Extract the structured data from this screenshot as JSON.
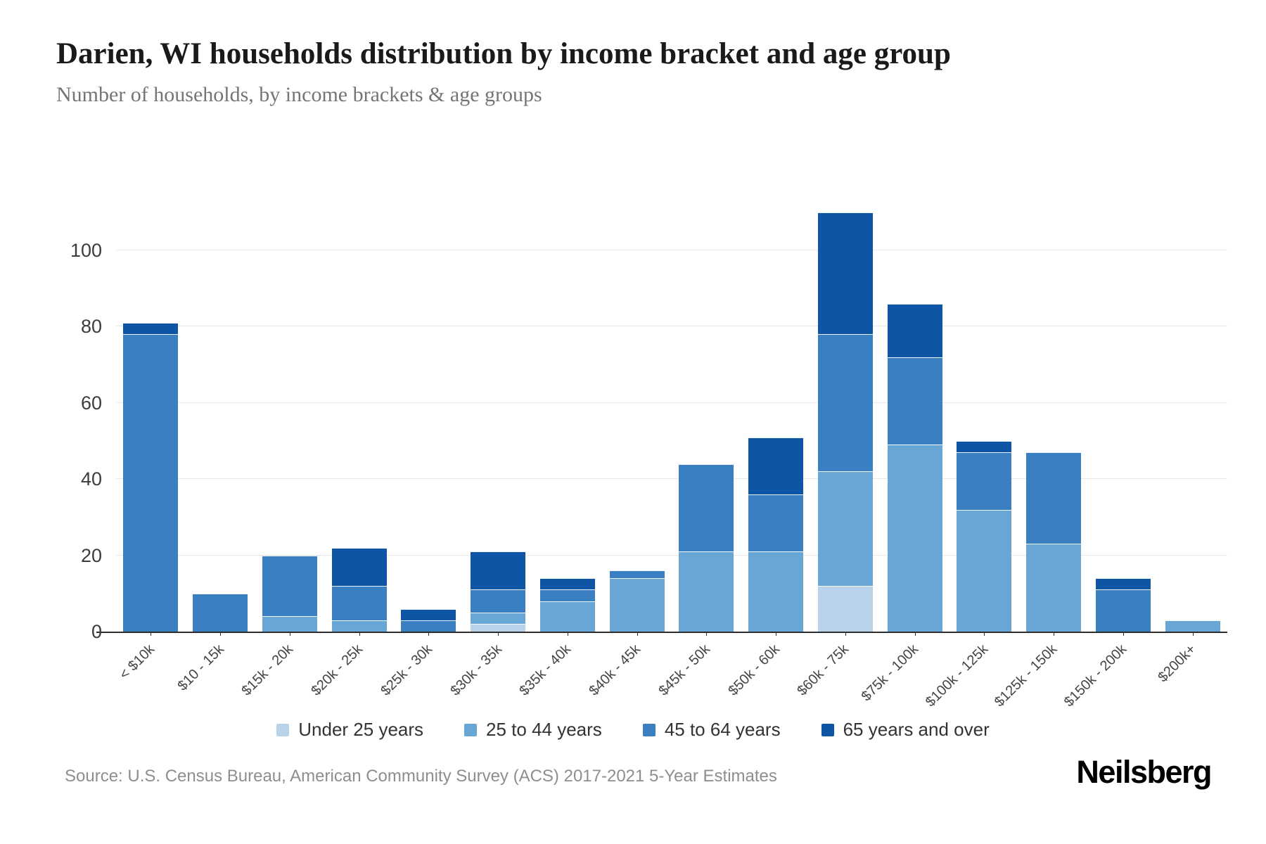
{
  "header": {
    "title": "Darien, WI households distribution by income bracket and age group",
    "subtitle": "Number of households, by income brackets & age groups"
  },
  "footer": {
    "source": "Source: U.S. Census Bureau, American Community Survey (ACS) 2017-2021 5-Year Estimates",
    "brand": "Neilsberg"
  },
  "chart_data": {
    "type": "bar",
    "stacked": true,
    "title": "Darien, WI households distribution by income bracket and age group",
    "xlabel": "",
    "ylabel": "",
    "categories": [
      "< $10k",
      "$10 - 15k",
      "$15k - 20k",
      "$20k - 25k",
      "$25k - 30k",
      "$30k - 35k",
      "$35k - 40k",
      "$40k - 45k",
      "$45k - 50k",
      "$50k - 60k",
      "$60k - 75k",
      "$75k - 100k",
      "$100k - 125k",
      "$125k - 150k",
      "$150k - 200k",
      "$200k+"
    ],
    "series": [
      {
        "name": "Under 25 years",
        "color": "#b9d4ea",
        "values": [
          0,
          0,
          0,
          0,
          0,
          2,
          0,
          0,
          0,
          0,
          12,
          0,
          0,
          0,
          0,
          0
        ]
      },
      {
        "name": "25 to 44 years",
        "color": "#68a7d5",
        "values": [
          0,
          0,
          4,
          3,
          0,
          3,
          8,
          14,
          21,
          21,
          30,
          49,
          32,
          23,
          0,
          3
        ]
      },
      {
        "name": "45 to 64 years",
        "color": "#3a7fc1",
        "values": [
          78,
          10,
          16,
          9,
          3,
          6,
          3,
          2,
          23,
          15,
          36,
          23,
          15,
          24,
          11,
          0
        ]
      },
      {
        "name": "65 years and over",
        "color": "#0e56a5",
        "values": [
          3,
          0,
          0,
          10,
          3,
          10,
          3,
          0,
          0,
          15,
          32,
          14,
          3,
          0,
          3,
          0
        ]
      }
    ],
    "totals": [
      81,
      10,
      20,
      22,
      6,
      21,
      14,
      16,
      44,
      51,
      110,
      86,
      50,
      47,
      14,
      3
    ],
    "yticks": [
      0,
      20,
      40,
      60,
      80,
      100
    ],
    "ylim": [
      0,
      110.7
    ],
    "grid": true,
    "legend_position": "bottom",
    "colors": {
      "gridline": "#e8e8e8",
      "axis": "#2e2e2e",
      "tick_label": "#3d3d3d",
      "x_label": "#444444",
      "legend_text": "#333333"
    }
  }
}
